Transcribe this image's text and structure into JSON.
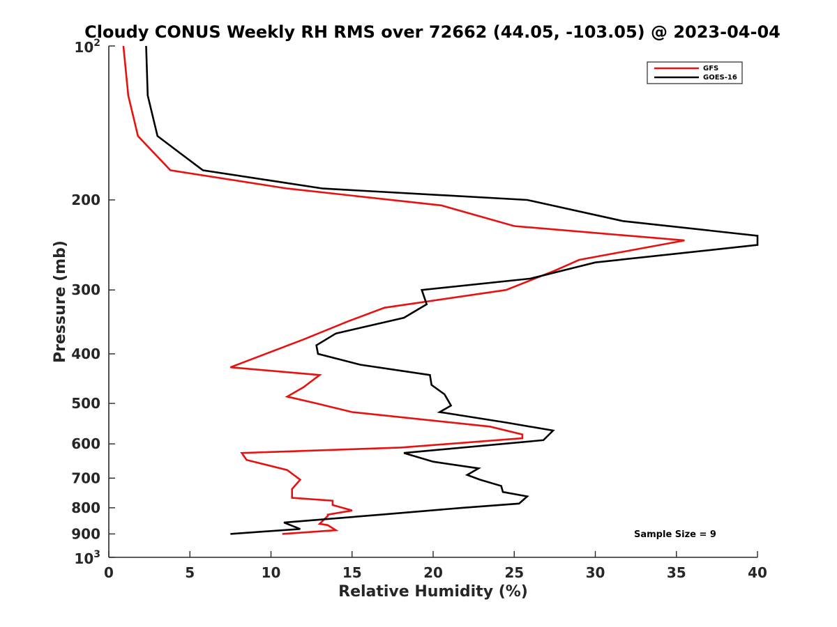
{
  "chart_data": {
    "type": "line",
    "title": "Cloudy CONUS Weekly RH RMS over 72662 (44.05, -103.05) @ 2023-04-04",
    "xlabel": "Relative Humidity (%)",
    "ylabel": "Pressure (mb)",
    "xlim": [
      0,
      40
    ],
    "ylim": [
      100,
      1000
    ],
    "y_scale": "log",
    "y_reversed": true,
    "x_ticks": [
      "0",
      "5",
      "10",
      "15",
      "20",
      "25",
      "30",
      "35",
      "40"
    ],
    "y_ticks": [
      {
        "value": 100,
        "base": "10",
        "exp": "2"
      },
      {
        "value": 200,
        "label": "200"
      },
      {
        "value": 300,
        "label": "300"
      },
      {
        "value": 400,
        "label": "400"
      },
      {
        "value": 500,
        "label": "500"
      },
      {
        "value": 600,
        "label": "600"
      },
      {
        "value": 700,
        "label": "700"
      },
      {
        "value": 800,
        "label": "800"
      },
      {
        "value": 900,
        "label": "900"
      },
      {
        "value": 1000,
        "base": "10",
        "exp": "3"
      }
    ],
    "grid": false,
    "legend_position": "top-right",
    "annotation": "Sample Size = 9",
    "series": [
      {
        "name": "GFS",
        "color": "#e8110f",
        "points": [
          [
            0.9,
            100
          ],
          [
            1.2,
            125
          ],
          [
            1.8,
            150
          ],
          [
            3.8,
            175
          ],
          [
            11.0,
            190
          ],
          [
            20.5,
            205
          ],
          [
            25.0,
            225
          ],
          [
            35.5,
            240
          ],
          [
            29.0,
            262
          ],
          [
            27.5,
            275
          ],
          [
            24.5,
            300
          ],
          [
            17.0,
            325
          ],
          [
            14.8,
            345
          ],
          [
            12.0,
            375
          ],
          [
            7.5,
            425
          ],
          [
            13.0,
            440
          ],
          [
            12.0,
            465
          ],
          [
            11.0,
            485
          ],
          [
            12.8,
            500
          ],
          [
            15.0,
            520
          ],
          [
            23.5,
            555
          ],
          [
            25.5,
            575
          ],
          [
            25.5,
            585
          ],
          [
            18.0,
            610
          ],
          [
            8.2,
            625
          ],
          [
            8.5,
            645
          ],
          [
            11.0,
            675
          ],
          [
            11.8,
            705
          ],
          [
            11.3,
            735
          ],
          [
            11.3,
            765
          ],
          [
            13.8,
            775
          ],
          [
            13.8,
            790
          ],
          [
            15.0,
            810
          ],
          [
            13.5,
            825
          ],
          [
            13.5,
            830
          ],
          [
            13.0,
            860
          ],
          [
            13.5,
            865
          ],
          [
            14.0,
            885
          ],
          [
            10.7,
            900
          ]
        ]
      },
      {
        "name": "GOES-16",
        "color": "#000000",
        "points": [
          [
            2.3,
            100
          ],
          [
            2.4,
            125
          ],
          [
            3.0,
            150
          ],
          [
            5.8,
            175
          ],
          [
            13.2,
            190
          ],
          [
            25.8,
            200
          ],
          [
            31.7,
            220
          ],
          [
            40.0,
            235
          ],
          [
            40.0,
            245
          ],
          [
            30.0,
            265
          ],
          [
            26.0,
            285
          ],
          [
            19.3,
            300
          ],
          [
            19.6,
            320
          ],
          [
            18.2,
            340
          ],
          [
            14.0,
            365
          ],
          [
            12.8,
            385
          ],
          [
            12.9,
            400
          ],
          [
            15.5,
            420
          ],
          [
            19.8,
            440
          ],
          [
            19.9,
            460
          ],
          [
            20.7,
            480
          ],
          [
            21.1,
            505
          ],
          [
            20.4,
            520
          ],
          [
            24.5,
            545
          ],
          [
            27.4,
            565
          ],
          [
            26.8,
            590
          ],
          [
            18.2,
            625
          ],
          [
            20.0,
            650
          ],
          [
            22.8,
            670
          ],
          [
            22.1,
            690
          ],
          [
            22.9,
            705
          ],
          [
            24.2,
            725
          ],
          [
            24.3,
            745
          ],
          [
            25.8,
            760
          ],
          [
            25.3,
            785
          ],
          [
            21.8,
            800
          ],
          [
            16.8,
            825
          ],
          [
            10.8,
            855
          ],
          [
            11.8,
            880
          ],
          [
            7.5,
            900
          ]
        ]
      }
    ]
  }
}
